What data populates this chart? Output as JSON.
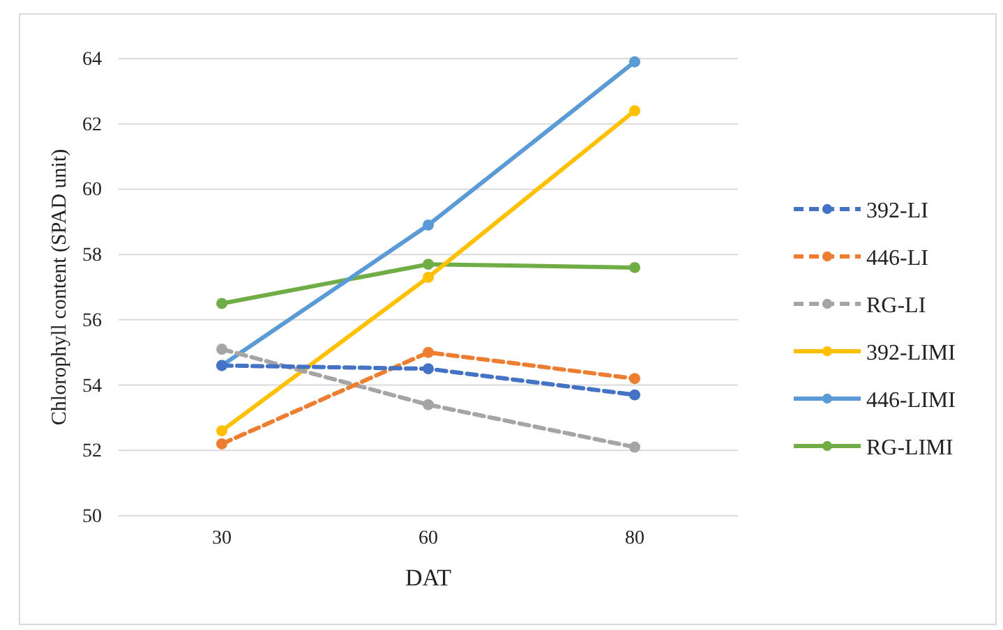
{
  "chart_data": {
    "type": "line",
    "xlabel": "DAT",
    "ylabel": "Chlorophyll  content (SPAD unit)",
    "categories": [
      "30",
      "60",
      "80"
    ],
    "ylim": [
      50,
      64
    ],
    "yticks": [
      50,
      52,
      54,
      56,
      58,
      60,
      62,
      64
    ],
    "grid": "y",
    "legend": "right",
    "marker": "circle",
    "series": [
      {
        "name": "392-LI",
        "color": "#4472c4",
        "line_style": "dashed",
        "values": [
          54.6,
          54.5,
          53.7
        ]
      },
      {
        "name": "446-LI",
        "color": "#ed7d31",
        "line_style": "dashed",
        "values": [
          52.2,
          55.0,
          54.2
        ]
      },
      {
        "name": "RG-LI",
        "color": "#a5a5a5",
        "line_style": "dashed",
        "values": [
          55.1,
          53.4,
          52.1
        ]
      },
      {
        "name": "392-LIMI",
        "color": "#ffc000",
        "line_style": "solid",
        "values": [
          52.6,
          57.3,
          62.4
        ]
      },
      {
        "name": "446-LIMI",
        "color": "#5b9bd5",
        "line_style": "solid",
        "values": [
          54.6,
          58.9,
          63.9
        ]
      },
      {
        "name": "RG-LIMI",
        "color": "#70ad47",
        "line_style": "solid",
        "values": [
          56.5,
          57.7,
          57.6
        ]
      }
    ]
  }
}
